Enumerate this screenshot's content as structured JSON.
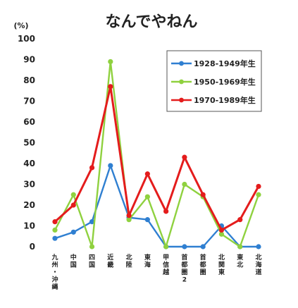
{
  "chart_data": {
    "type": "line",
    "title": "なんでやねん",
    "y_unit": "(%)",
    "ylim": [
      0,
      100
    ],
    "yticks": [
      0,
      10,
      20,
      30,
      40,
      50,
      60,
      70,
      80,
      90,
      100
    ],
    "grid": false,
    "legend_position": "top-right",
    "categories": [
      "九州・沖縄",
      "中国",
      "四国",
      "近畿",
      "北陸",
      "東海",
      "甲信越",
      "首都圏2",
      "首都圏",
      "北関東",
      "東北",
      "北海道"
    ],
    "series": [
      {
        "name": "1928-1949年生",
        "color": "#2f7fd1",
        "values": [
          4,
          7,
          12,
          39,
          14,
          13,
          0,
          0,
          0,
          10,
          0,
          0
        ]
      },
      {
        "name": "1950-1969年生",
        "color": "#8fd13f",
        "values": [
          8,
          25,
          0,
          89,
          13,
          24,
          0,
          30,
          24,
          6,
          0,
          25
        ]
      },
      {
        "name": "1970-1989年生",
        "color": "#e41c1c",
        "values": [
          12,
          20,
          38,
          77,
          15,
          35,
          17,
          43,
          25,
          8,
          13,
          29
        ]
      }
    ]
  }
}
